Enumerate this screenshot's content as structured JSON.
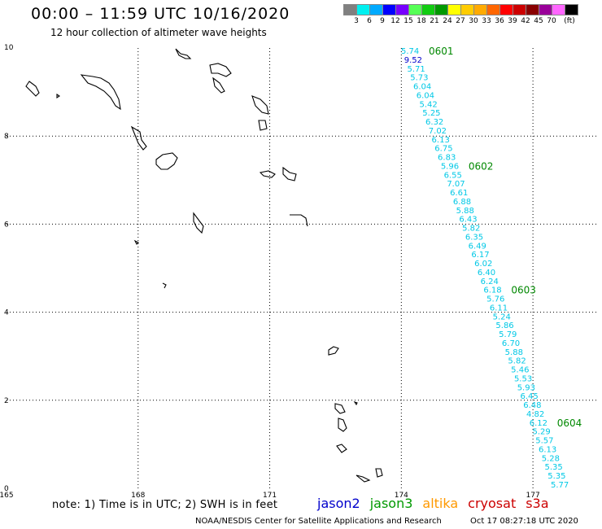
{
  "header": {
    "title": "00:00 – 11:59 UTC 10/16/2020",
    "subtitle": "12 hour collection of altimeter wave heights"
  },
  "legend": {
    "colors": [
      "#808080",
      "#00f0f0",
      "#00aaff",
      "#0000ff",
      "#7700ff",
      "#55ff55",
      "#11cc11",
      "#009900",
      "#ffff00",
      "#ffcc00",
      "#ffaa00",
      "#ff6600",
      "#ff0000",
      "#cc0000",
      "#880000",
      "#990099",
      "#ff66ff",
      "#000000"
    ],
    "labels": [
      "3",
      "6",
      "9",
      "12",
      "15",
      "18",
      "21",
      "24",
      "27",
      "30",
      "33",
      "36",
      "39",
      "42",
      "45",
      "70",
      "(ft)"
    ]
  },
  "map": {
    "lat_min": 0,
    "lat_max": 10,
    "lon_min": 165,
    "lon_max": 178.5,
    "y_ticks": [
      {
        "lat": 10,
        "label": "10"
      },
      {
        "lat": 8,
        "label": "8"
      },
      {
        "lat": 6,
        "label": "6"
      },
      {
        "lat": 4,
        "label": "4"
      },
      {
        "lat": 2,
        "label": "2"
      },
      {
        "lat": 0,
        "label": "0"
      }
    ],
    "x_ticks": [
      {
        "lon": 165,
        "label": "165"
      },
      {
        "lon": 168,
        "label": "168"
      },
      {
        "lon": 171,
        "label": "171"
      },
      {
        "lon": 174,
        "label": "174"
      },
      {
        "lon": 177,
        "label": "177"
      }
    ],
    "grid_lons": [
      168,
      171,
      174,
      177
    ],
    "grid_lats": [
      8,
      6,
      4,
      2
    ]
  },
  "track": {
    "obs": [
      {
        "v": "5.74",
        "color": "#00c8e6"
      },
      {
        "v": "9.52",
        "color": "#0000cc"
      },
      {
        "v": "5.71",
        "color": "#00c8e6"
      },
      {
        "v": "5.73",
        "color": "#00c8e6"
      },
      {
        "v": "6.04",
        "color": "#00c8e6"
      },
      {
        "v": "6.04",
        "color": "#00c8e6"
      },
      {
        "v": "5.42",
        "color": "#00c8e6"
      },
      {
        "v": "5.25",
        "color": "#00c8e6"
      },
      {
        "v": "6.32",
        "color": "#00c8e6"
      },
      {
        "v": "7.02",
        "color": "#00c8e6"
      },
      {
        "v": "6.13",
        "color": "#00c8e6"
      },
      {
        "v": "6.75",
        "color": "#00c8e6"
      },
      {
        "v": "6.83",
        "color": "#00c8e6"
      },
      {
        "v": "5.96",
        "color": "#00c8e6"
      },
      {
        "v": "6.55",
        "color": "#00c8e6"
      },
      {
        "v": "7.07",
        "color": "#00c8e6"
      },
      {
        "v": "6.61",
        "color": "#00c8e6"
      },
      {
        "v": "6.88",
        "color": "#00c8e6"
      },
      {
        "v": "5.88",
        "color": "#00c8e6"
      },
      {
        "v": "6.43",
        "color": "#00c8e6"
      },
      {
        "v": "5.82",
        "color": "#00c8e6"
      },
      {
        "v": "6.35",
        "color": "#00c8e6"
      },
      {
        "v": "6.49",
        "color": "#00c8e6"
      },
      {
        "v": "6.17",
        "color": "#00c8e6"
      },
      {
        "v": "6.02",
        "color": "#00c8e6"
      },
      {
        "v": "6.40",
        "color": "#00c8e6"
      },
      {
        "v": "6.24",
        "color": "#00c8e6"
      },
      {
        "v": "6.18",
        "color": "#00c8e6"
      },
      {
        "v": "5.76",
        "color": "#00c8e6"
      },
      {
        "v": "6.11",
        "color": "#00c8e6"
      },
      {
        "v": "5.24",
        "color": "#00c8e6"
      },
      {
        "v": "5.86",
        "color": "#00c8e6"
      },
      {
        "v": "5.79",
        "color": "#00c8e6"
      },
      {
        "v": "6.70",
        "color": "#00c8e6"
      },
      {
        "v": "5.88",
        "color": "#00c8e6"
      },
      {
        "v": "5.82",
        "color": "#00c8e6"
      },
      {
        "v": "5.46",
        "color": "#00c8e6"
      },
      {
        "v": "5.53",
        "color": "#00c8e6"
      },
      {
        "v": "5.93",
        "color": "#00c8e6"
      },
      {
        "v": "6.45",
        "color": "#00c8e6"
      },
      {
        "v": "6.48",
        "color": "#00c8e6"
      },
      {
        "v": "4.82",
        "color": "#00c8e6"
      },
      {
        "v": "6.12",
        "color": "#00c8e6"
      },
      {
        "v": "5.29",
        "color": "#00c8e6"
      },
      {
        "v": "5.57",
        "color": "#00c8e6"
      },
      {
        "v": "6.13",
        "color": "#00c8e6"
      },
      {
        "v": "5.28",
        "color": "#00c8e6"
      },
      {
        "v": "5.35",
        "color": "#00c8e6"
      },
      {
        "v": "5.35",
        "color": "#00c8e6"
      },
      {
        "v": "5.77",
        "color": "#00c8e6"
      }
    ],
    "times": [
      {
        "label": "0601",
        "at": 0
      },
      {
        "label": "0602",
        "at": 13
      },
      {
        "label": "0603",
        "at": 27
      },
      {
        "label": "0604",
        "at": 42
      }
    ]
  },
  "footer": {
    "note": "note: 1) Time is in UTC; 2) SWH is in feet",
    "satellites": [
      {
        "name": "jason2",
        "color": "#0000cc"
      },
      {
        "name": "jason3",
        "color": "#009900"
      },
      {
        "name": "altika",
        "color": "#ff9900"
      },
      {
        "name": "cryosat",
        "color": "#cc0000"
      },
      {
        "name": "s3a",
        "color": "#cc0000"
      }
    ],
    "credit": "NOAA/NESDIS Center for Satellite Applications and Research",
    "timestamp": "Oct 17 08:27:18 UTC 2020"
  }
}
